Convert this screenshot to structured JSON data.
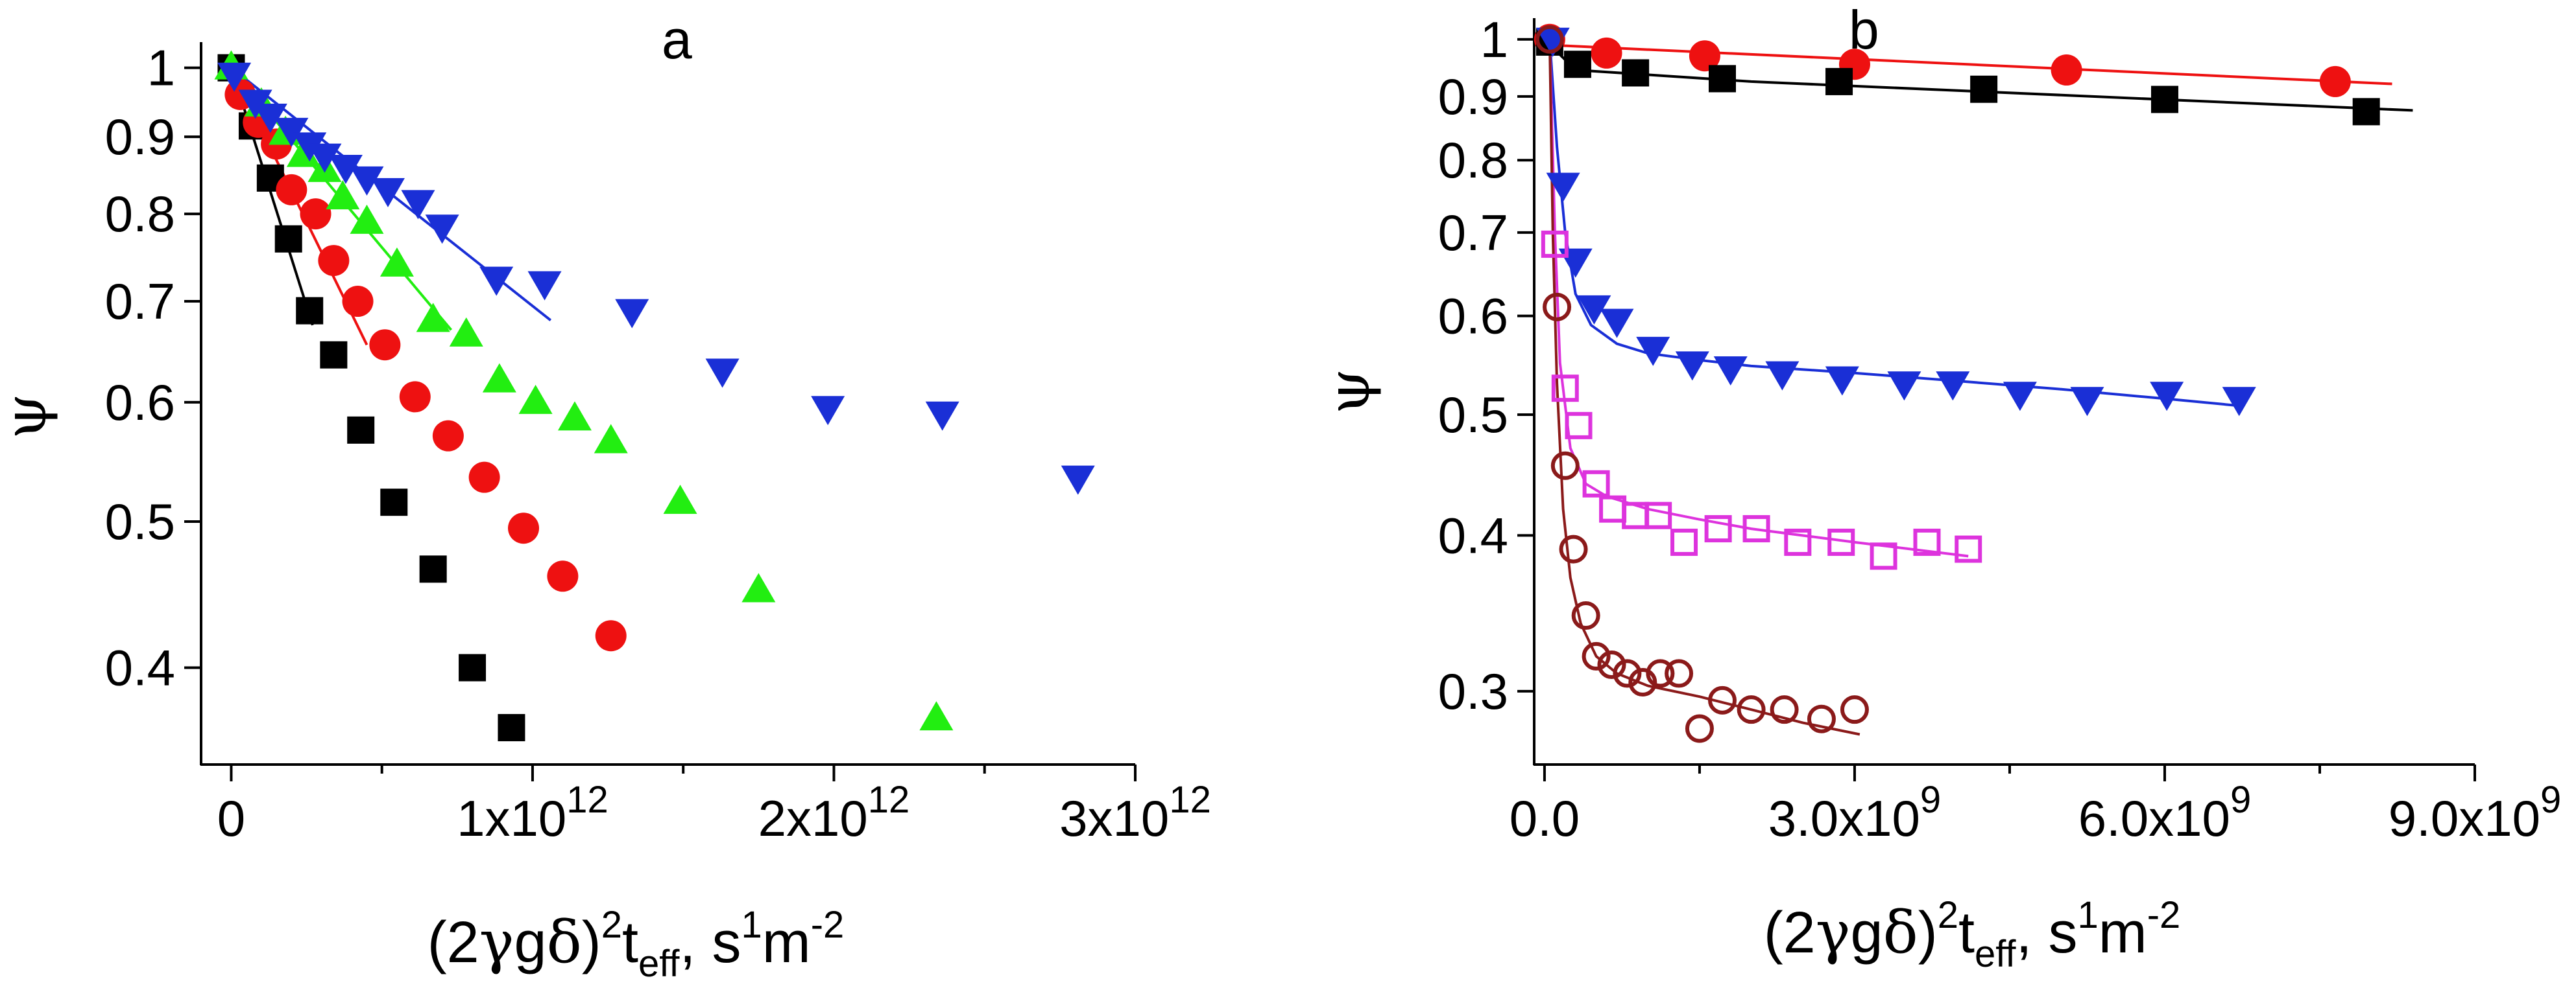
{
  "chart_data": [
    {
      "panel": "a",
      "type": "scatter",
      "y_scale": "log",
      "x_multiplier": 1000000000000.0,
      "xlim": [
        -0.1,
        3.0
      ],
      "ylim": [
        0.345,
        1.04
      ],
      "x_ticks": [
        0,
        1,
        2,
        3
      ],
      "x_tick_labels": [
        "0",
        "1x10^12",
        "2x10^12",
        "3x10^12"
      ],
      "y_ticks": [
        1,
        0.9,
        0.8,
        0.7,
        0.6,
        0.5,
        0.4
      ],
      "y_tick_labels": [
        "1",
        "0.9",
        "0.8",
        "0.7",
        "0.6",
        "0.5",
        "0.4"
      ],
      "ylabel": "ψ",
      "xlabel": "(2γgδ)²t_eff, s¹m⁻²",
      "series": [
        {
          "name": "squares",
          "color": "#000000",
          "marker": "square",
          "x": [
            0.0,
            0.07,
            0.13,
            0.19,
            0.26,
            0.34,
            0.43,
            0.54,
            0.67,
            0.8,
            0.93
          ],
          "y": [
            1.0,
            0.915,
            0.845,
            0.77,
            0.69,
            0.645,
            0.575,
            0.515,
            0.465,
            0.4,
            0.365
          ],
          "fit": {
            "x": [
              0.0,
              0.27
            ],
            "y": [
              1.0,
              0.675
            ]
          }
        },
        {
          "name": "circles",
          "color": "#ee1111",
          "marker": "circle",
          "x": [
            0.03,
            0.09,
            0.15,
            0.2,
            0.28,
            0.34,
            0.42,
            0.51,
            0.61,
            0.72,
            0.84,
            0.97,
            1.1,
            1.26
          ],
          "y": [
            0.96,
            0.92,
            0.89,
            0.83,
            0.8,
            0.745,
            0.7,
            0.655,
            0.605,
            0.57,
            0.535,
            0.495,
            0.46,
            0.42
          ],
          "fit": {
            "x": [
              0.0,
              0.45
            ],
            "y": [
              1.0,
              0.655
            ]
          }
        },
        {
          "name": "up-triangles",
          "color": "#22ee11",
          "marker": "triangle-up",
          "x": [
            0.0,
            0.1,
            0.18,
            0.24,
            0.31,
            0.37,
            0.45,
            0.55,
            0.67,
            0.78,
            0.89,
            1.01,
            1.14,
            1.26,
            1.49,
            1.75,
            2.34
          ],
          "y": [
            1.0,
            0.945,
            0.905,
            0.875,
            0.855,
            0.82,
            0.79,
            0.74,
            0.68,
            0.665,
            0.62,
            0.6,
            0.585,
            0.565,
            0.515,
            0.45,
            0.37
          ],
          "fit": {
            "x": [
              0.0,
              0.73
            ],
            "y": [
              1.0,
              0.67
            ]
          }
        },
        {
          "name": "down-triangles",
          "color": "#1a2fd6",
          "marker": "triangle-down",
          "x": [
            0.01,
            0.08,
            0.13,
            0.2,
            0.26,
            0.31,
            0.38,
            0.45,
            0.52,
            0.62,
            0.7,
            0.88,
            1.04,
            1.33,
            1.63,
            1.98,
            2.36,
            2.81
          ],
          "y": [
            0.99,
            0.95,
            0.93,
            0.91,
            0.89,
            0.875,
            0.86,
            0.845,
            0.83,
            0.815,
            0.785,
            0.725,
            0.72,
            0.69,
            0.63,
            0.595,
            0.59,
            0.535
          ],
          "fit": {
            "x": [
              0.0,
              1.06
            ],
            "y": [
              1.0,
              0.68
            ]
          }
        }
      ]
    },
    {
      "panel": "b",
      "type": "scatter",
      "y_scale": "log",
      "x_multiplier": 1000000000.0,
      "xlim": [
        -0.1,
        9.0
      ],
      "ylim": [
        0.262,
        1.04
      ],
      "x_ticks": [
        0,
        3,
        6,
        9
      ],
      "x_tick_labels": [
        "0.0",
        "3.0x10^9",
        "6.0x10^9",
        "9.0x10^9"
      ],
      "y_ticks": [
        1,
        0.9,
        0.8,
        0.7,
        0.6,
        0.5,
        0.4,
        0.3
      ],
      "y_tick_labels": [
        "1",
        "0.9",
        "0.8",
        "0.7",
        "0.6",
        "0.5",
        "0.4",
        "0.3"
      ],
      "ylabel": "ψ",
      "xlabel": "(2γgδ)²t_eff, s¹m⁻²",
      "series": [
        {
          "name": "filled-circles",
          "color": "#ee1111",
          "marker": "circle",
          "x": [
            0.05,
            0.6,
            1.55,
            3.0,
            5.05,
            7.65
          ],
          "y": [
            1.0,
            0.975,
            0.97,
            0.955,
            0.945,
            0.925
          ],
          "fit": {
            "x": [
              0.0,
              8.2
            ],
            "y": [
              0.99,
              0.921
            ]
          }
        },
        {
          "name": "filled-squares",
          "color": "#000000",
          "marker": "square",
          "x": [
            0.05,
            0.32,
            0.88,
            1.72,
            2.85,
            4.25,
            6.0,
            7.95
          ],
          "y": [
            0.995,
            0.955,
            0.94,
            0.93,
            0.925,
            0.912,
            0.895,
            0.875
          ],
          "fit": {
            "x": [
              0.0,
              0.3,
              2.0,
              8.4
            ],
            "y": [
              1.0,
              0.945,
              0.925,
              0.877
            ]
          }
        },
        {
          "name": "down-triangles",
          "color": "#1a2fd6",
          "marker": "triangle-down",
          "x": [
            0.08,
            0.18,
            0.3,
            0.48,
            0.7,
            1.05,
            1.43,
            1.8,
            2.3,
            2.88,
            3.48,
            3.95,
            4.6,
            5.25,
            6.02,
            6.72
          ],
          "y": [
            1.0,
            0.765,
            0.665,
            0.61,
            0.595,
            0.565,
            0.55,
            0.545,
            0.54,
            0.535,
            0.53,
            0.53,
            0.52,
            0.515,
            0.52,
            0.515
          ],
          "fit": {
            "x": [
              0.05,
              0.12,
              0.2,
              0.3,
              0.45,
              0.7,
              1.0,
              1.5,
              2.0,
              3.0,
              4.0,
              5.0,
              6.0,
              6.75
            ],
            "y": [
              1.0,
              0.82,
              0.7,
              0.625,
              0.59,
              0.57,
              0.56,
              0.553,
              0.547,
              0.54,
              0.532,
              0.524,
              0.515,
              0.508
            ]
          }
        },
        {
          "name": "open-squares",
          "color": "#dd33dd",
          "marker": "square-open",
          "x": [
            0.1,
            0.2,
            0.33,
            0.5,
            0.66,
            0.88,
            1.1,
            1.35,
            1.68,
            2.05,
            2.45,
            2.87,
            3.28,
            3.7,
            4.1
          ],
          "y": [
            0.685,
            0.525,
            0.49,
            0.44,
            0.42,
            0.415,
            0.415,
            0.395,
            0.405,
            0.405,
            0.395,
            0.395,
            0.385,
            0.395,
            0.39
          ],
          "fit": {
            "x": [
              0.05,
              0.1,
              0.15,
              0.25,
              0.4,
              0.6,
              1.0,
              1.5,
              2.0,
              3.0,
              4.1
            ],
            "y": [
              1.0,
              0.7,
              0.55,
              0.47,
              0.44,
              0.43,
              0.42,
              0.412,
              0.405,
              0.395,
              0.385
            ]
          }
        },
        {
          "name": "open-circles",
          "color": "#8b1a1a",
          "marker": "circle-open",
          "x": [
            0.05,
            0.12,
            0.2,
            0.28,
            0.4,
            0.5,
            0.65,
            0.8,
            0.95,
            1.12,
            1.3,
            1.5,
            1.72,
            2.0,
            2.32,
            2.68,
            3.0
          ],
          "y": [
            1.0,
            0.61,
            0.455,
            0.39,
            0.345,
            0.32,
            0.315,
            0.31,
            0.305,
            0.31,
            0.31,
            0.28,
            0.295,
            0.29,
            0.29,
            0.285,
            0.29
          ],
          "fit": {
            "x": [
              0.05,
              0.08,
              0.12,
              0.18,
              0.25,
              0.35,
              0.5,
              0.7,
              1.0,
              1.5,
              2.0,
              2.5,
              3.05
            ],
            "y": [
              1.0,
              0.7,
              0.53,
              0.42,
              0.37,
              0.34,
              0.32,
              0.31,
              0.303,
              0.297,
              0.29,
              0.283,
              0.277
            ]
          }
        }
      ]
    }
  ]
}
